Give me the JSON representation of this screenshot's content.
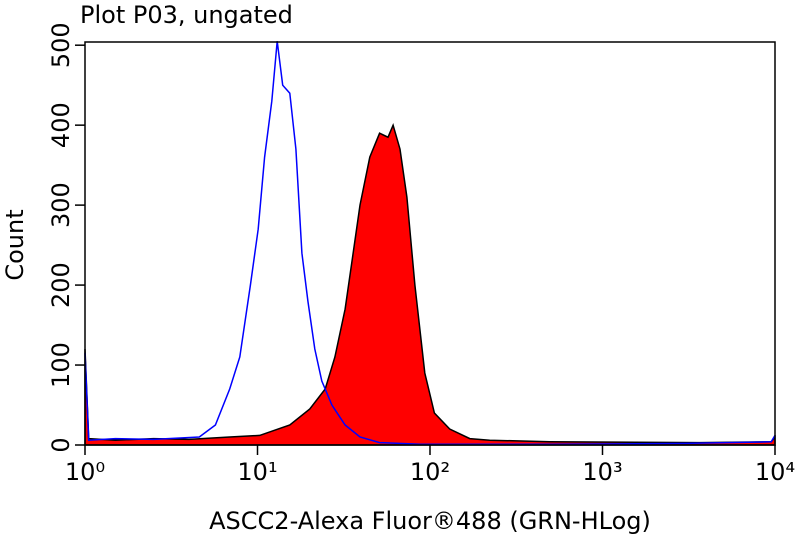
{
  "chart_data": {
    "type": "histogram-overlay",
    "title": "Plot P03, ungated",
    "x_label": "ASCC2-Alexa Fluor®488 (GRN-HLog)",
    "y_label": "Count",
    "xscale": "log",
    "xlim": [
      1,
      10000
    ],
    "xticks": [
      {
        "value": 1,
        "label": "10⁰"
      },
      {
        "value": 10,
        "label": "10¹"
      },
      {
        "value": 100,
        "label": "10²"
      },
      {
        "value": 1000,
        "label": "10³"
      },
      {
        "value": 10000,
        "label": "10⁴"
      }
    ],
    "ylim": [
      0,
      504
    ],
    "yticks": [
      0,
      100,
      200,
      300,
      400,
      500
    ],
    "series": [
      {
        "color": "#ff0000",
        "filled": true,
        "x": [
          1,
          1.05,
          1.5,
          2.5,
          4,
          6.9,
          10.3,
          15.4,
          20.1,
          24.7,
          28.1,
          32.2,
          35.3,
          39.3,
          44.8,
          51,
          57.1,
          61.1,
          67,
          73.5,
          81.7,
          93.3,
          106,
          130,
          170,
          222,
          496,
          3660,
          9500,
          10000
        ],
        "values": [
          120,
          8,
          6,
          8,
          7,
          10,
          12,
          25,
          45,
          70,
          110,
          170,
          230,
          300,
          360,
          390,
          385,
          400,
          370,
          310,
          200,
          90,
          40,
          20,
          8,
          6,
          4,
          3,
          4,
          10
        ]
      },
      {
        "color": "#0000ff",
        "filled": false,
        "x": [
          1,
          1.05,
          1.5,
          2.5,
          4.6,
          5.7,
          6.9,
          7.9,
          9.1,
          10.1,
          11,
          12.1,
          13,
          14,
          15.4,
          16.7,
          18.1,
          19.6,
          21.5,
          23.6,
          27,
          32.2,
          39.3,
          51,
          87.8,
          500,
          3000,
          9500,
          10000
        ],
        "values": [
          115,
          6,
          8,
          7,
          10,
          25,
          70,
          110,
          200,
          270,
          360,
          430,
          505,
          450,
          440,
          370,
          240,
          180,
          120,
          80,
          50,
          25,
          10,
          3,
          1,
          1,
          2,
          4,
          12
        ]
      }
    ]
  }
}
